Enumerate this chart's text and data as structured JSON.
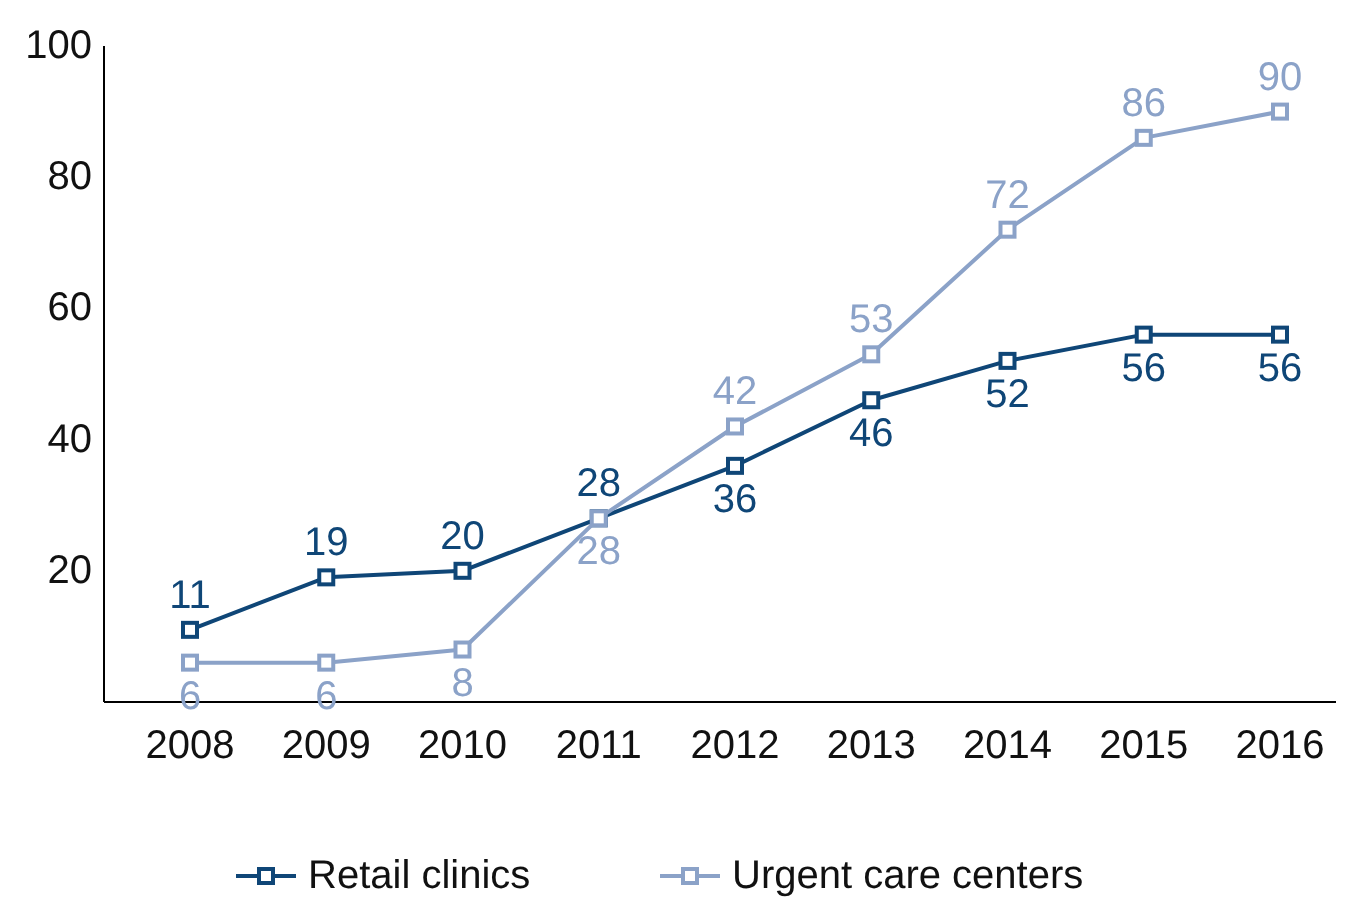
{
  "chart_data": {
    "type": "line",
    "categories": [
      "2008",
      "2009",
      "2010",
      "2011",
      "2012",
      "2013",
      "2014",
      "2015",
      "2016"
    ],
    "series": [
      {
        "name": "Retail clinics",
        "color": "#0f4677",
        "values": [
          11,
          19,
          20,
          28,
          36,
          46,
          52,
          56,
          56
        ]
      },
      {
        "name": "Urgent care centers",
        "color": "#8ba2c8",
        "values": [
          6,
          6,
          8,
          28,
          42,
          53,
          72,
          86,
          90
        ]
      }
    ],
    "ylim": [
      0,
      100
    ],
    "yticks": [
      20,
      40,
      60,
      80,
      100
    ],
    "data_labels": true,
    "marker": "square",
    "legend": "bottom",
    "grid": false
  }
}
